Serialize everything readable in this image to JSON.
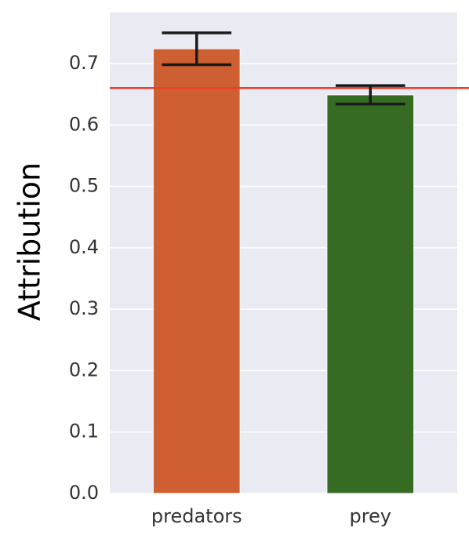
{
  "chart_data": {
    "type": "bar",
    "y_label": "Attribution",
    "categories": [
      "predators",
      "prey"
    ],
    "values": [
      0.724,
      0.649
    ],
    "errors": [
      0.026,
      0.015
    ],
    "colors": [
      "#cd5f32",
      "#356b22"
    ],
    "ylim": [
      0,
      0.783
    ],
    "yticks": [
      {
        "value": 0,
        "label": "0.0"
      },
      0.1,
      0.2,
      0.3,
      0.4,
      0.5,
      0.6,
      0.7
    ],
    "grid": true,
    "hline": 0.66,
    "hline_color": "#e8402e"
  }
}
